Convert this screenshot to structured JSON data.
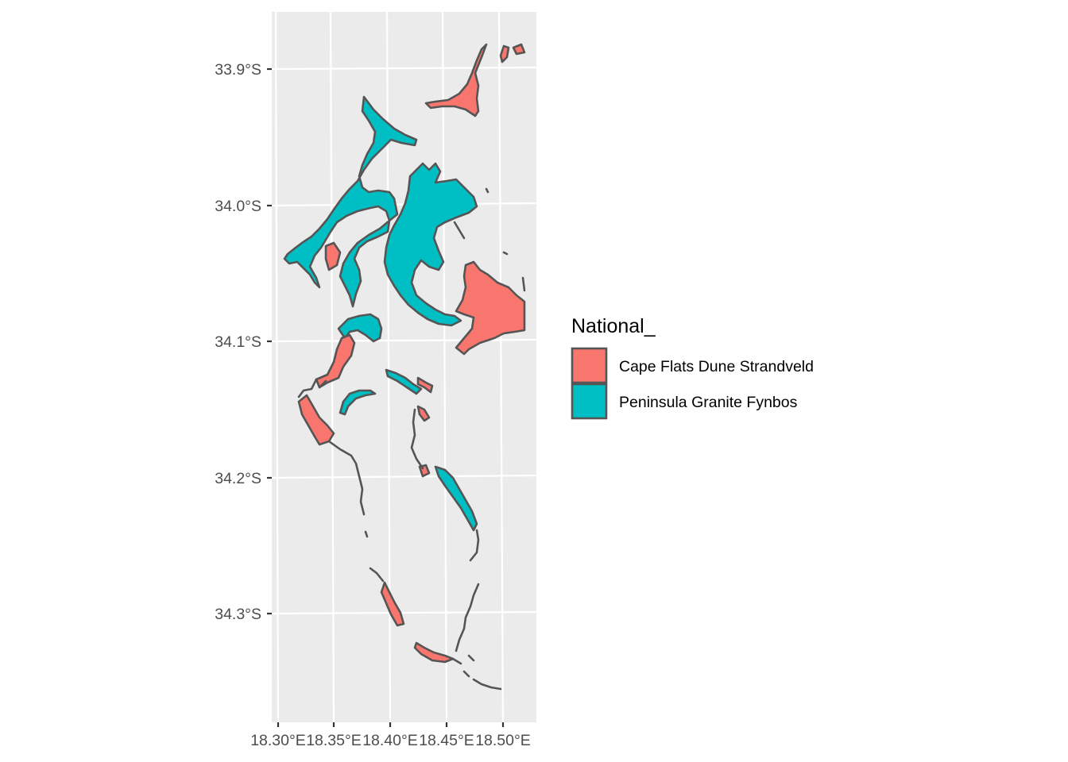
{
  "chart_data": {
    "type": "map",
    "title": "",
    "xlabel": "",
    "ylabel": "",
    "x_ticks": [
      "18.30°E",
      "18.35°E",
      "18.40°E",
      "18.45°E",
      "18.50°E"
    ],
    "y_ticks": [
      "33.9°S",
      "34.0°S",
      "34.1°S",
      "34.2°S",
      "34.3°S"
    ],
    "xlim": [
      18.297,
      18.525
    ],
    "ylim": [
      -34.37,
      -33.86
    ],
    "grid": true,
    "legend": {
      "title": "National_",
      "placement": "right",
      "entries": [
        {
          "name": "Cape Flats Dune Strandveld",
          "color": "#f8766d"
        },
        {
          "name": "Peninsula Granite Fynbos",
          "color": "#00bfc4"
        }
      ]
    },
    "outline_color": "#555555",
    "panel_background": "#ebebeb"
  }
}
